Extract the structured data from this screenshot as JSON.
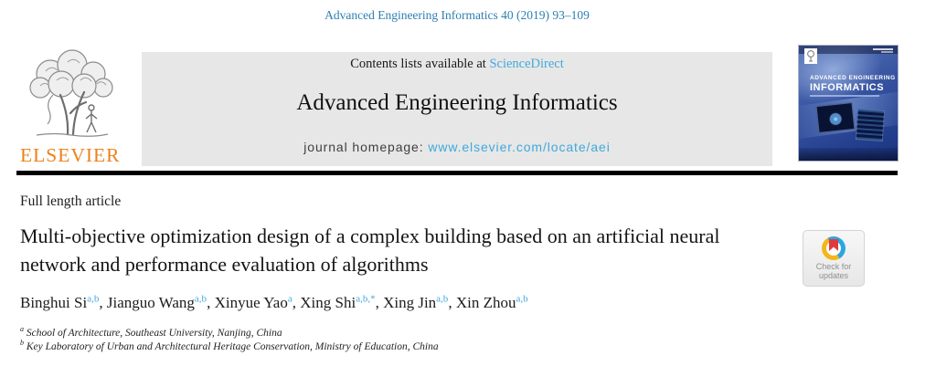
{
  "page": {
    "citation": "Advanced Engineering Informatics 40 (2019) 93–109"
  },
  "header": {
    "contents_prefix": "Contents lists available at ",
    "contents_link": "ScienceDirect",
    "journal_title": "Advanced Engineering Informatics",
    "homepage_prefix": "journal homepage: ",
    "homepage_link": "www.elsevier.com/locate/aei",
    "publisher_wordmark": "ELSEVIER",
    "cover": {
      "title_line1": "ADVANCED ENGINEERING",
      "title_line2": "INFORMATICS"
    }
  },
  "article": {
    "type_label": "Full length article",
    "title": "Multi-objective optimization design of a complex building based on an artificial neural network and performance evaluation of algorithms",
    "authors": [
      {
        "name": "Binghui Si",
        "sup": "a,b"
      },
      {
        "name": "Jianguo Wang",
        "sup": "a,b"
      },
      {
        "name": "Xinyue Yao",
        "sup": "a"
      },
      {
        "name": "Xing Shi",
        "sup": "a,b,*"
      },
      {
        "name": "Xing Jin",
        "sup": "a,b"
      },
      {
        "name": "Xin Zhou",
        "sup": "a,b"
      }
    ],
    "affiliations": [
      {
        "sup": "a",
        "text": "School of Architecture, Southeast University, Nanjing, China"
      },
      {
        "sup": "b",
        "text": "Key Laboratory of Urban and Architectural Heritage Conservation, Ministry of Education, China"
      }
    ]
  },
  "badge": {
    "line1": "Check for",
    "line2": "updates"
  },
  "colors": {
    "link_blue": "#3fa9dc",
    "citation_blue": "#2d7fb2",
    "text_black": "#1a1a1a",
    "elsevier_orange": "#ee8018",
    "banner_gray": "#e7e7e7",
    "cover_blue": "#3a57a4",
    "cover_blue_dark": "#1b3480",
    "rule_black": "#000000",
    "badge_red": "#e03a3e",
    "badge_yellow": "#f2b71c",
    "badge_blue_ring": "#2ba7e0",
    "badge_text_gray": "#8f8f8f"
  }
}
